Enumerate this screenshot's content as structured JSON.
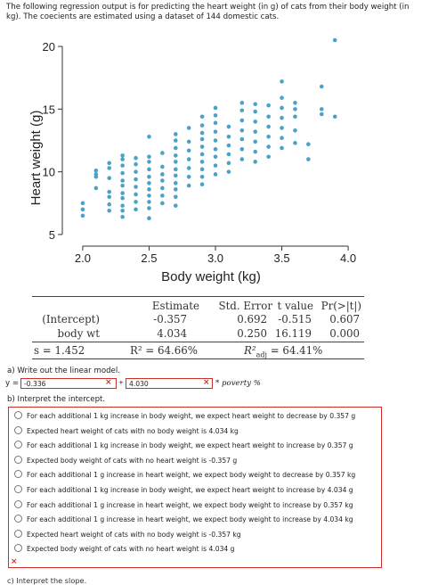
{
  "intro": {
    "text": "The following regression output is for predicting the heart weight (in g) of cats from their body weight (in kg). The coecients are estimated using a dataset of 144 domestic cats."
  },
  "chart_data": {
    "type": "scatter",
    "xlabel": "Body weight (kg)",
    "ylabel": "Heart weight (g)",
    "xlim": [
      1.9,
      4.1
    ],
    "ylim": [
      4.5,
      21.0
    ],
    "xticks": [
      2.0,
      2.5,
      3.0,
      3.5,
      4.0
    ],
    "xtick_labels": [
      "2.0",
      "2.5",
      "3.0",
      "3.5",
      "4.0"
    ],
    "yticks": [
      5,
      10,
      15,
      20
    ],
    "ytick_labels": [
      "5",
      "10",
      "15",
      "20"
    ],
    "grid": false,
    "point_color": "#4aa3c7",
    "x": [
      2.0,
      2.0,
      2.0,
      2.1,
      2.1,
      2.1,
      2.1,
      2.2,
      2.2,
      2.2,
      2.2,
      2.2,
      2.2,
      2.2,
      2.3,
      2.3,
      2.3,
      2.3,
      2.3,
      2.3,
      2.3,
      2.3,
      2.3,
      2.3,
      2.3,
      2.4,
      2.4,
      2.4,
      2.4,
      2.4,
      2.4,
      2.4,
      2.4,
      2.5,
      2.5,
      2.5,
      2.5,
      2.5,
      2.5,
      2.5,
      2.5,
      2.5,
      2.5,
      2.5,
      2.6,
      2.6,
      2.6,
      2.6,
      2.6,
      2.6,
      2.6,
      2.7,
      2.7,
      2.7,
      2.7,
      2.7,
      2.7,
      2.7,
      2.7,
      2.7,
      2.7,
      2.7,
      2.8,
      2.8,
      2.8,
      2.8,
      2.8,
      2.8,
      2.8,
      2.9,
      2.9,
      2.9,
      2.9,
      2.9,
      2.9,
      2.9,
      2.9,
      2.9,
      2.9,
      3.0,
      3.0,
      3.0,
      3.0,
      3.0,
      3.0,
      3.0,
      3.0,
      3.0,
      3.1,
      3.1,
      3.1,
      3.1,
      3.1,
      3.1,
      3.2,
      3.2,
      3.2,
      3.2,
      3.2,
      3.2,
      3.2,
      3.3,
      3.3,
      3.3,
      3.3,
      3.3,
      3.3,
      3.3,
      3.4,
      3.4,
      3.4,
      3.4,
      3.4,
      3.4,
      3.5,
      3.5,
      3.5,
      3.5,
      3.5,
      3.5,
      3.5,
      3.6,
      3.6,
      3.6,
      3.6,
      3.6,
      3.7,
      3.7,
      3.8,
      3.8,
      3.8,
      3.9,
      3.9
    ],
    "y": [
      6.5,
      7.0,
      7.5,
      8.7,
      9.6,
      9.8,
      10.1,
      6.9,
      7.4,
      8.0,
      8.4,
      9.5,
      10.3,
      10.7,
      6.4,
      6.9,
      7.3,
      7.9,
      8.3,
      8.9,
      9.3,
      9.9,
      10.5,
      11.0,
      11.3,
      7.0,
      7.6,
      8.2,
      8.8,
      9.4,
      10.0,
      10.6,
      11.1,
      6.3,
      7.1,
      7.6,
      8.1,
      8.6,
      9.1,
      9.6,
      10.2,
      10.8,
      11.2,
      12.8,
      7.5,
      8.1,
      8.7,
      9.3,
      9.8,
      10.4,
      11.5,
      7.3,
      8.0,
      8.6,
      9.1,
      9.7,
      10.2,
      10.8,
      11.3,
      11.9,
      12.5,
      13.0,
      8.9,
      9.6,
      10.3,
      11.0,
      11.7,
      12.4,
      13.5,
      9.0,
      9.6,
      10.2,
      10.8,
      11.4,
      12.0,
      12.6,
      13.1,
      13.7,
      14.4,
      9.8,
      10.5,
      11.2,
      11.8,
      12.5,
      13.2,
      13.9,
      14.5,
      15.1,
      10.0,
      10.7,
      11.4,
      12.1,
      12.8,
      13.6,
      11.0,
      11.8,
      12.6,
      13.3,
      14.1,
      14.9,
      15.5,
      10.8,
      11.6,
      12.4,
      13.2,
      14.0,
      14.8,
      15.4,
      11.2,
      12.0,
      12.8,
      13.6,
      14.4,
      15.3,
      11.9,
      12.7,
      13.5,
      14.3,
      15.1,
      15.9,
      17.2,
      12.3,
      13.3,
      14.4,
      15.0,
      15.5,
      12.2,
      11.0,
      14.6,
      15.0,
      16.8,
      14.4,
      20.5
    ]
  },
  "regression_table": {
    "headers": [
      "Estimate",
      "Std. Error",
      "t value",
      "Pr(>|t|)"
    ],
    "rows": [
      {
        "term": "(Intercept)",
        "estimate": "-0.357",
        "std_error": "0.692",
        "t_value": "-0.515",
        "p_value": "0.607"
      },
      {
        "term": "body wt",
        "estimate": "4.034",
        "std_error": "0.250",
        "t_value": "16.119",
        "p_value": "0.000"
      }
    ],
    "s_text": "s = 1.452",
    "r2_text": "R² = 64.66%",
    "r2adj_label": "R²",
    "r2adj_sub": "adj",
    "r2adj_value": " = 64.41%"
  },
  "question_a": {
    "label": "a) Write out the linear model.",
    "y_prefix": "y =",
    "intercept_value": "-0.336",
    "plus": "+",
    "slope_value": "4.030",
    "suffix": "* poverty %",
    "wrong_mark": "×"
  },
  "question_b": {
    "label": "b) Interpret the intercept.",
    "options": [
      "For each additional 1 kg increase in body weight, we expect heart weight to decrease by 0.357 g",
      "Expected heart weight of cats with no body weight is 4.034 kg",
      "For each additional 1 kg increase in body weight, we expect heart weight to increase by 0.357 g",
      "Expected body weight of cats with no heart weight is -0.357 g",
      "For each additional 1 g increase in heart weight, we expect body weight to decrease by 0.357 kg",
      "For each additional 1 kg increase in body weight, we expect heart weight to increase by 4.034 g",
      "For each additional 1 g increase in heart weight, we expect body weight to increase by 0.357 kg",
      "For each additional 1 g increase in heart weight, we expect body weight to increase by 4.034 kg",
      "Expected heart weight of cats with no body weight is -0.357 kg",
      "Expected body weight of cats with no heart weight is 4.034 g"
    ],
    "wrong_mark": "×"
  },
  "next_question_partial": "c) Interpret the slope."
}
